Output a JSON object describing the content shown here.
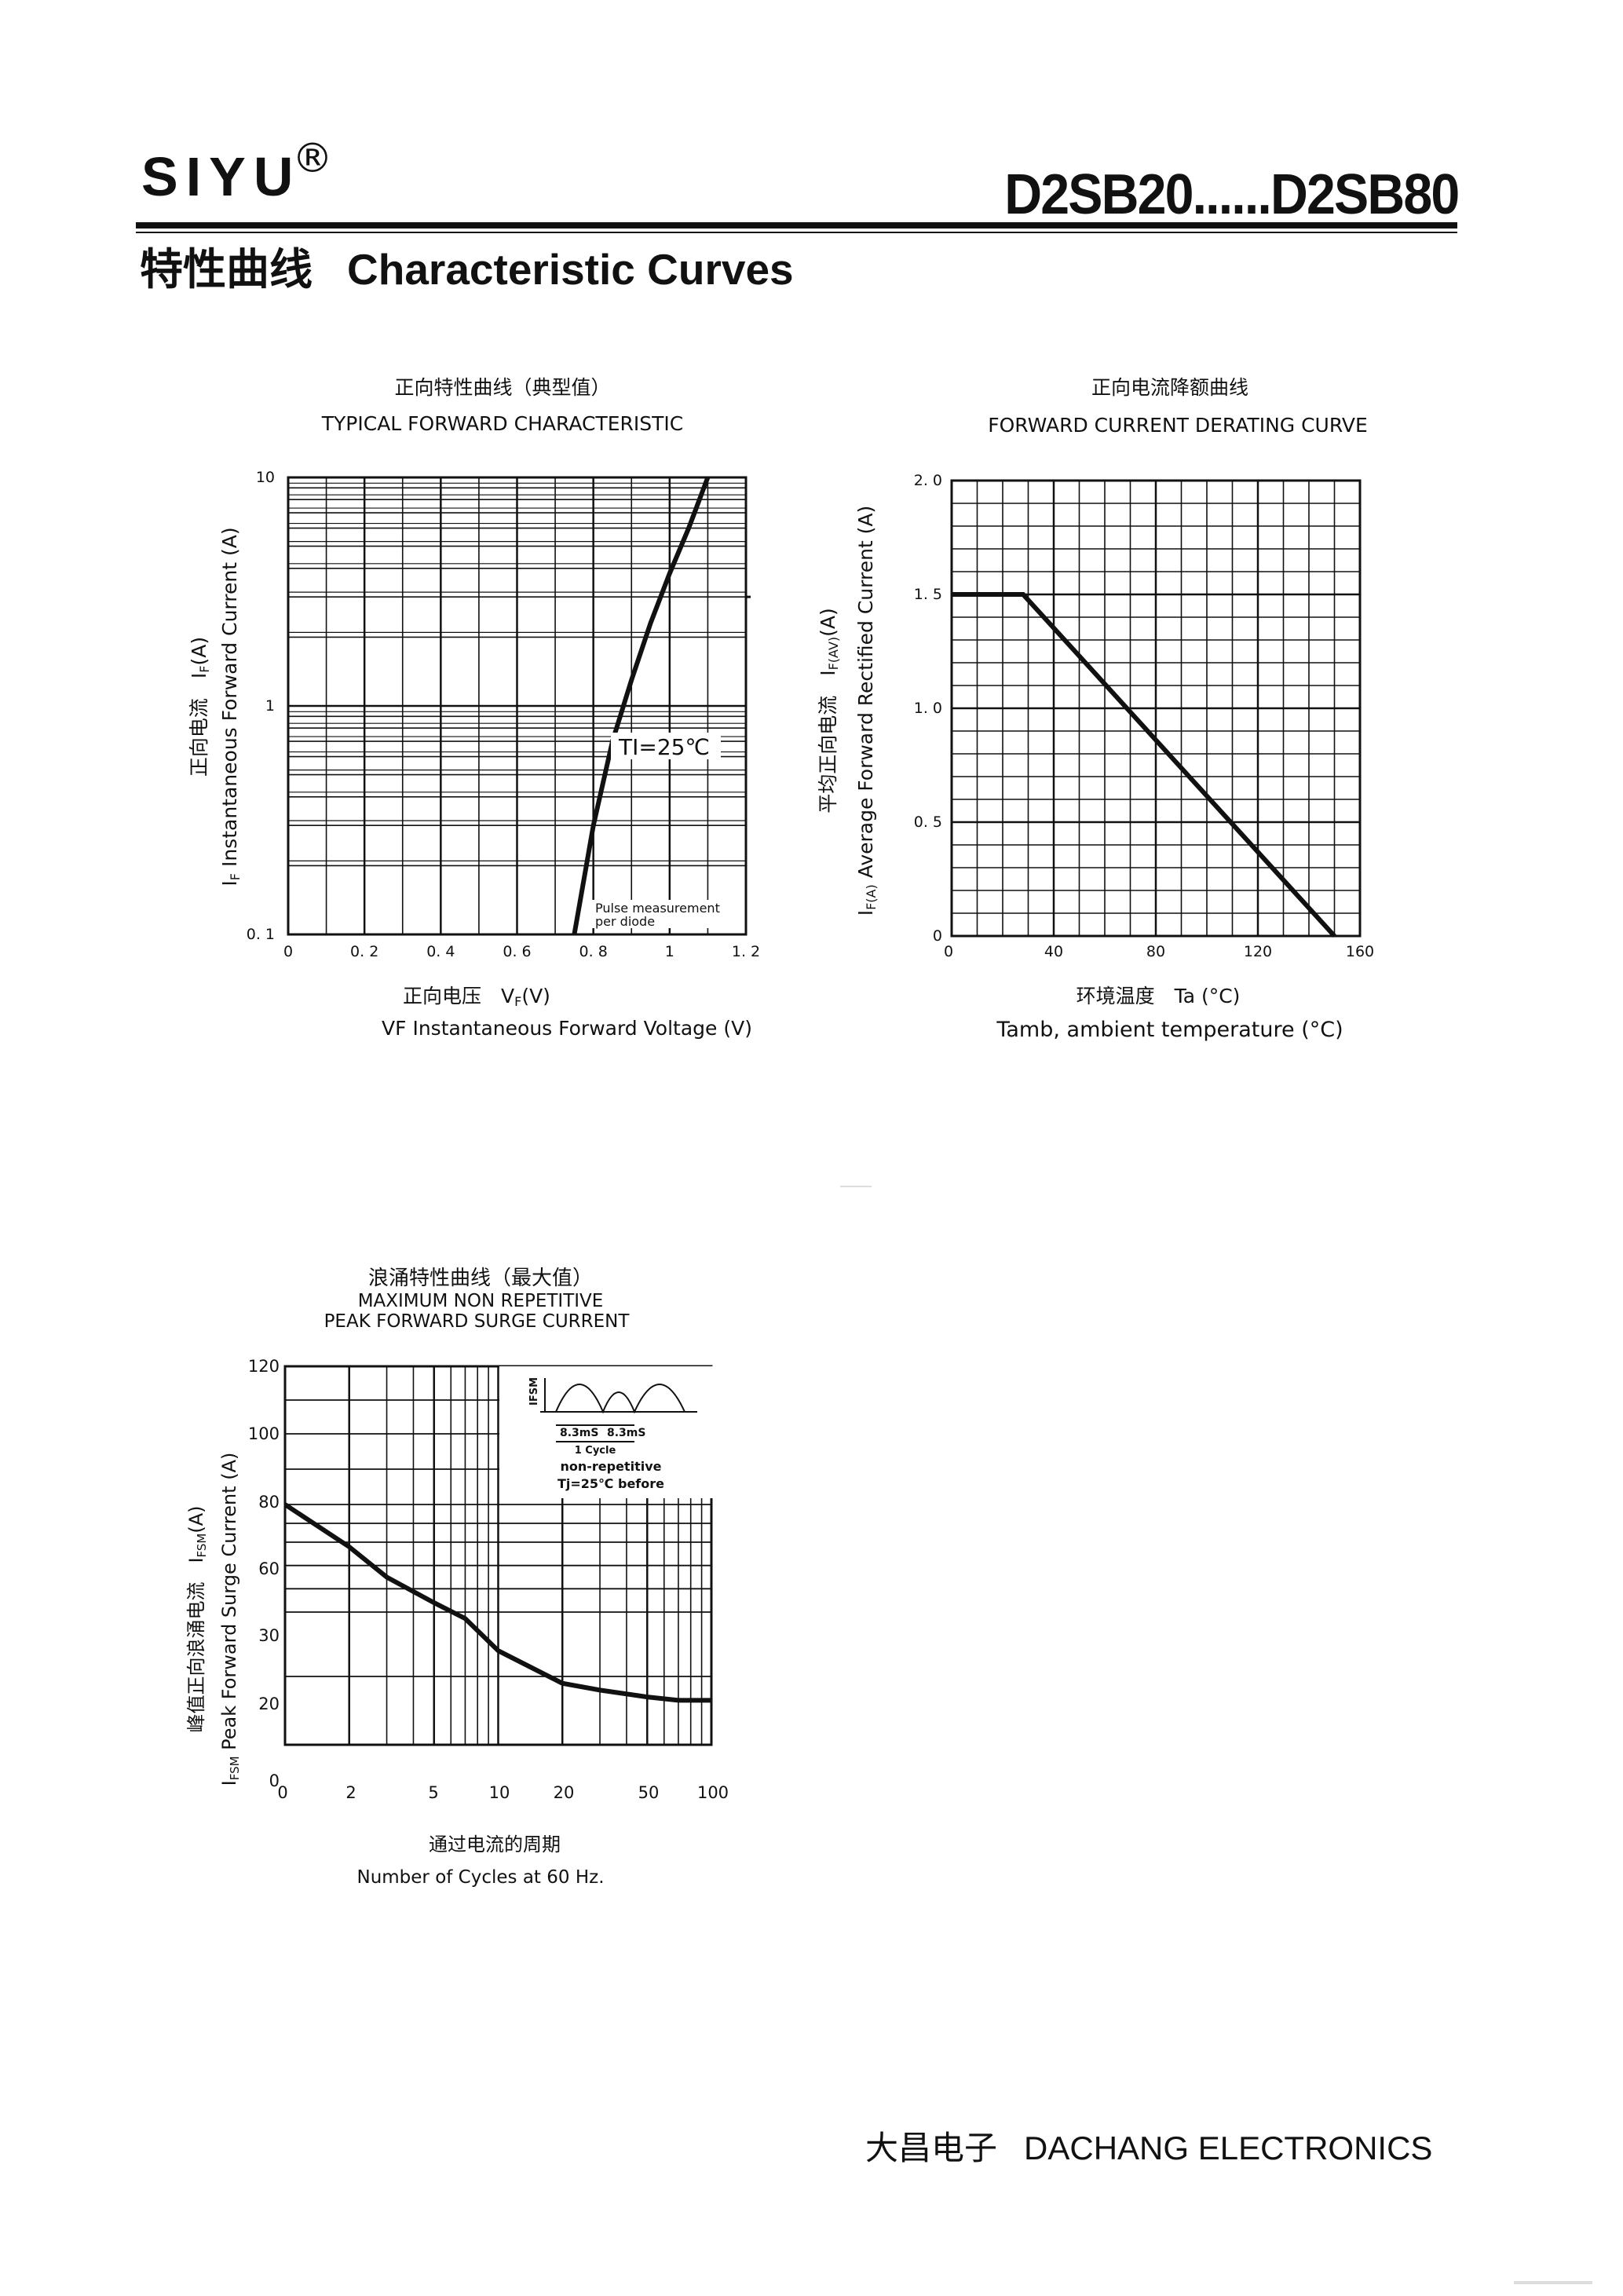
{
  "header": {
    "brand": "SIYU",
    "registered_mark": "®",
    "model_range": "D2SB20......D2SB80",
    "section_title_zh": "特性曲线",
    "section_title_en": "Characteristic Curves"
  },
  "footer": {
    "company_zh": "大昌电子",
    "company_en": "DACHANG ELECTRONICS"
  },
  "chart_data": [
    {
      "id": "forward-characteristic",
      "type": "line",
      "title_zh": "正向特性曲线（典型值）",
      "title_en": "TYPICAL FORWARD CHARACTERISTIC",
      "xlabel_zh": "正向电压　V",
      "xlabel_zh_sub": "F",
      "xlabel_zh_unit": "(V)",
      "xlabel_en": "VF  Instantaneous Forward Voltage (V)",
      "ylabel_zh": "正向电流　I",
      "ylabel_zh_sub": "F",
      "ylabel_zh_unit": "(A)",
      "ylabel_en_pre": "I",
      "ylabel_en_sub": "F",
      "ylabel_en": " Instantaneous Forward Current (A)",
      "xlim": [
        0,
        1.2
      ],
      "ylim": [
        0.1,
        10
      ],
      "yscale": "log",
      "xticks": [
        "0",
        "0. 2",
        "0. 4",
        "0. 6",
        "0. 8",
        "1",
        "1. 2"
      ],
      "yticks": [
        "0. 1",
        "1",
        "10"
      ],
      "annotation_temp": "TI=25℃",
      "annotation_note_1": "Pulse measurement",
      "annotation_note_2": "per diode",
      "series": [
        {
          "x": [
            0.75,
            0.8,
            0.85,
            0.9,
            0.95,
            1.0,
            1.05,
            1.1
          ],
          "y": [
            0.1,
            0.3,
            0.7,
            1.3,
            2.3,
            3.8,
            6.0,
            10.0
          ]
        }
      ]
    },
    {
      "id": "derating-curve",
      "type": "line",
      "title_zh": "正向电流降额曲线",
      "title_en": "FORWARD CURRENT DERATING CURVE",
      "xlabel_zh": "环境温度　Ta (°C)",
      "xlabel_en": "Tamb, ambient temperature (°C)",
      "ylabel_zh": "平均正向电流　I",
      "ylabel_zh_sub": "F(AV)",
      "ylabel_zh_unit": "(A)",
      "ylabel_en_pre": "I",
      "ylabel_en_sub": "F(A)",
      "ylabel_en": " Average Forward Rectified Current (A)",
      "xlim": [
        0,
        160
      ],
      "ylim": [
        0,
        2.0
      ],
      "xticks": [
        "0",
        "40",
        "80",
        "120",
        "160"
      ],
      "yticks": [
        "0",
        "0. 5",
        "1. 0",
        "1. 5",
        "2. 0"
      ],
      "series": [
        {
          "x": [
            0,
            28,
            150
          ],
          "y": [
            1.5,
            1.5,
            0
          ]
        }
      ]
    },
    {
      "id": "surge-current",
      "type": "line",
      "title_zh": "浪涌特性曲线（最大值）",
      "title_en_1": "MAXIMUM NON REPETITIVE",
      "title_en_2": "PEAK FORWARD SURGE CURRENT",
      "xlabel_zh": "通过电流的周期",
      "xlabel_en": "Number  of  Cycles at 60 Hz.",
      "ylabel_zh": "峰值正向浪涌电流　I",
      "ylabel_zh_sub": "FSM",
      "ylabel_zh_unit": "(A)",
      "ylabel_en_pre": "I",
      "ylabel_en_sub": "FSM",
      "ylabel_en": " Peak Forward Surge Current (A)",
      "xticks": [
        "0",
        "2",
        "5",
        "10",
        "20",
        "50",
        "100"
      ],
      "yticks": [
        "0",
        "20",
        "30",
        "60",
        "80",
        "100",
        "120"
      ],
      "inset_ifsm": "IFSM",
      "inset_pulse_1": "8.3mS",
      "inset_pulse_2": "8.3mS",
      "inset_cycle": "1 Cycle",
      "inset_nonrep": "non-repetitive",
      "inset_tj": "Tj=25℃  before",
      "series": [
        {
          "x": [
            1,
            2,
            3,
            5,
            7,
            10,
            20,
            30,
            50,
            70,
            100
          ],
          "y": [
            80,
            58,
            45,
            34,
            29,
            24,
            18,
            16,
            14,
            13,
            13
          ]
        }
      ]
    }
  ]
}
